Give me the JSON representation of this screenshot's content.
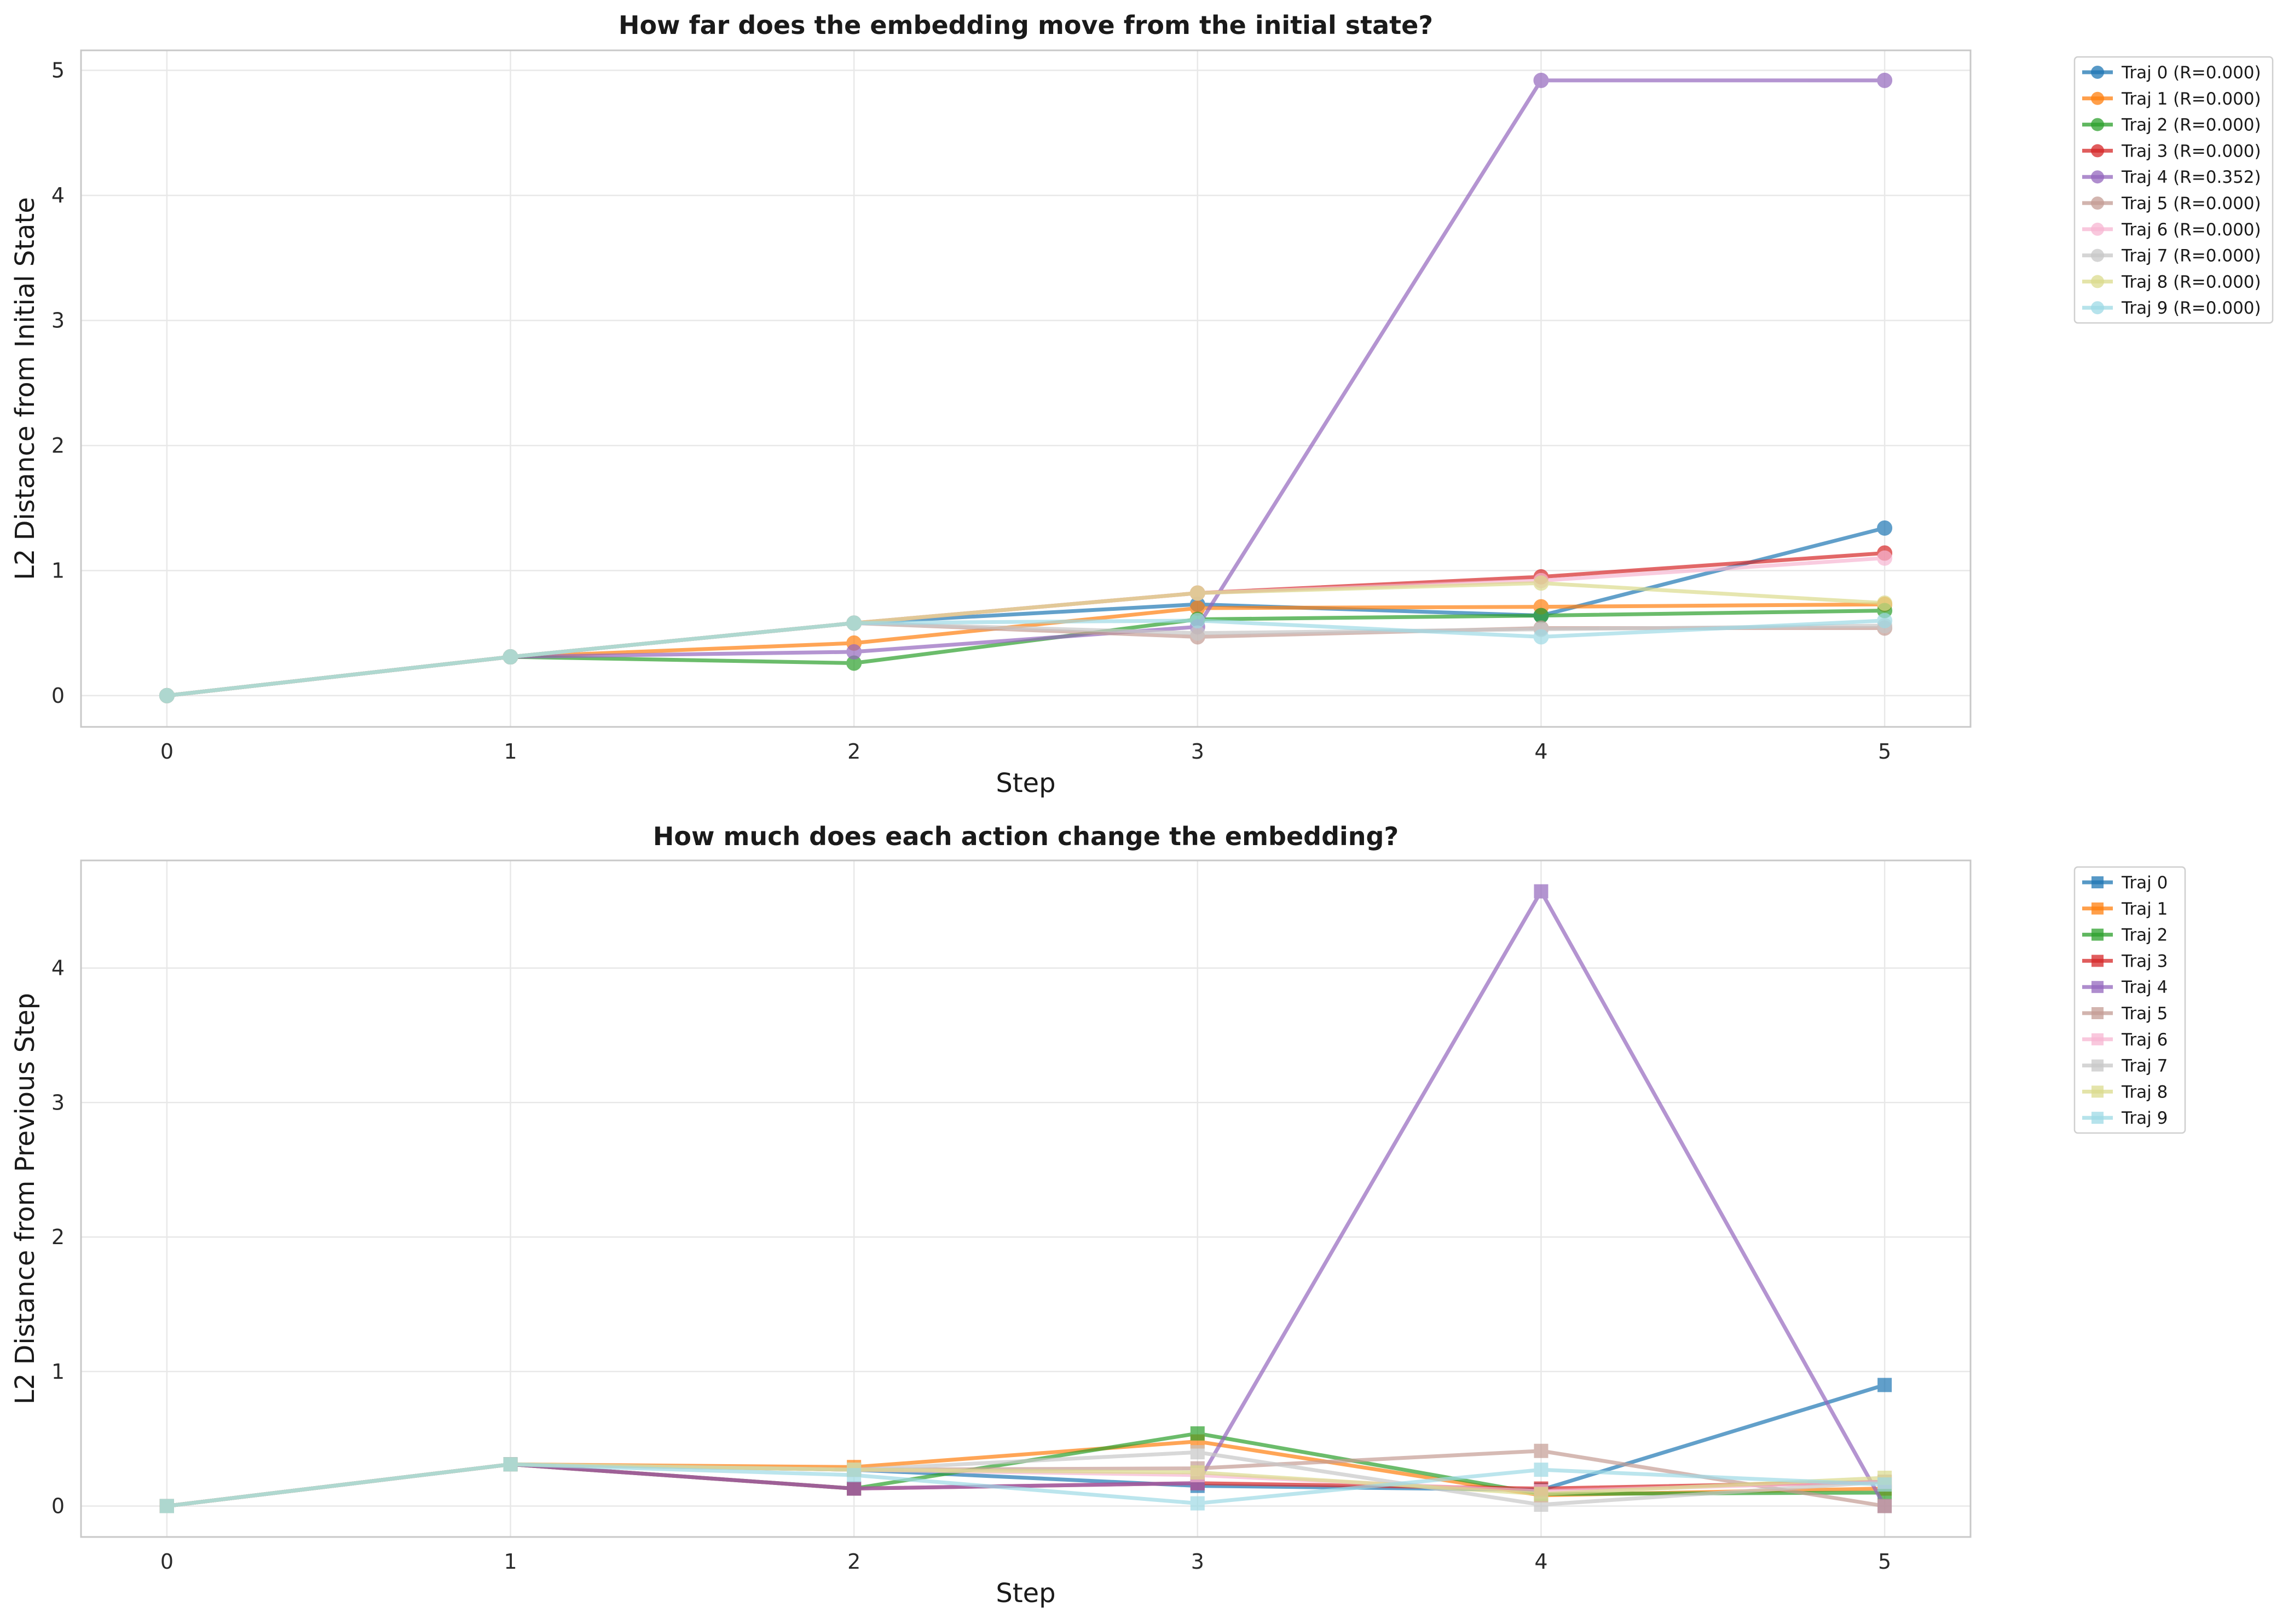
{
  "colors": [
    "#1f77b4",
    "#ff7f0e",
    "#2ca02c",
    "#d62728",
    "#9467bd",
    "#c49c94",
    "#f7b6d2",
    "#c7c7c7",
    "#dbdb8d",
    "#9edae5"
  ],
  "chart_data": [
    {
      "type": "line",
      "title": "How far does the embedding move from the initial state?",
      "xlabel": "Step",
      "ylabel": "L2 Distance from Initial State",
      "x": [
        0,
        1,
        2,
        3,
        4,
        5
      ],
      "xticks": [
        "0",
        "1",
        "2",
        "3",
        "4",
        "5"
      ],
      "yticks": [
        "0",
        "1",
        "2",
        "3",
        "4",
        "5"
      ],
      "xlim": [
        -0.25,
        5.25
      ],
      "ylim": [
        -0.25,
        5.16
      ],
      "grid": true,
      "marker": "circle",
      "legend_position": "outside-top-right",
      "series": [
        {
          "name": "Traj 0 (R=0.000)",
          "values": [
            0,
            0.31,
            0.58,
            0.73,
            0.64,
            1.34
          ]
        },
        {
          "name": "Traj 1 (R=0.000)",
          "values": [
            0,
            0.31,
            0.42,
            0.7,
            0.71,
            0.73
          ]
        },
        {
          "name": "Traj 2 (R=0.000)",
          "values": [
            0,
            0.31,
            0.26,
            0.61,
            0.64,
            0.68
          ]
        },
        {
          "name": "Traj 3 (R=0.000)",
          "values": [
            0,
            0.31,
            0.58,
            0.82,
            0.95,
            1.14
          ]
        },
        {
          "name": "Traj 4 (R=0.352)",
          "values": [
            0,
            0.31,
            0.35,
            0.55,
            4.92,
            4.92
          ]
        },
        {
          "name": "Traj 5 (R=0.000)",
          "values": [
            0,
            0.31,
            0.58,
            0.47,
            0.54,
            0.54
          ]
        },
        {
          "name": "Traj 6 (R=0.000)",
          "values": [
            0,
            0.31,
            0.58,
            0.82,
            0.92,
            1.1
          ]
        },
        {
          "name": "Traj 7 (R=0.000)",
          "values": [
            0,
            0.31,
            0.58,
            0.5,
            0.53,
            0.56
          ]
        },
        {
          "name": "Traj 8 (R=0.000)",
          "values": [
            0,
            0.31,
            0.58,
            0.82,
            0.9,
            0.74
          ]
        },
        {
          "name": "Traj 9 (R=0.000)",
          "values": [
            0,
            0.31,
            0.58,
            0.6,
            0.47,
            0.6
          ]
        }
      ]
    },
    {
      "type": "line",
      "title": "How much does each action change the embedding?",
      "xlabel": "Step",
      "ylabel": "L2 Distance from Previous Step",
      "x": [
        0,
        1,
        2,
        3,
        4,
        5
      ],
      "xticks": [
        "0",
        "1",
        "2",
        "3",
        "4",
        "5"
      ],
      "yticks": [
        "0",
        "1",
        "2",
        "3",
        "4"
      ],
      "xlim": [
        -0.25,
        5.25
      ],
      "ylim": [
        -0.23,
        4.8
      ],
      "grid": true,
      "marker": "square",
      "legend_position": "outside-top-right",
      "series": [
        {
          "name": "Traj 0",
          "values": [
            0,
            0.31,
            0.27,
            0.15,
            0.12,
            0.9
          ]
        },
        {
          "name": "Traj 1",
          "values": [
            0,
            0.31,
            0.29,
            0.48,
            0.08,
            0.13
          ]
        },
        {
          "name": "Traj 2",
          "values": [
            0,
            0.31,
            0.13,
            0.54,
            0.09,
            0.1
          ]
        },
        {
          "name": "Traj 3",
          "values": [
            0,
            0.31,
            0.13,
            0.17,
            0.13,
            0.18
          ]
        },
        {
          "name": "Traj 4",
          "values": [
            0,
            0.31,
            0.13,
            0.17,
            4.57,
            0.0
          ]
        },
        {
          "name": "Traj 5",
          "values": [
            0,
            0.31,
            0.27,
            0.28,
            0.41,
            0.0
          ]
        },
        {
          "name": "Traj 6",
          "values": [
            0,
            0.31,
            0.27,
            0.23,
            0.11,
            0.18
          ]
        },
        {
          "name": "Traj 7",
          "values": [
            0,
            0.31,
            0.27,
            0.4,
            0.01,
            0.18
          ]
        },
        {
          "name": "Traj 8",
          "values": [
            0,
            0.31,
            0.27,
            0.25,
            0.09,
            0.21
          ]
        },
        {
          "name": "Traj 9",
          "values": [
            0,
            0.31,
            0.23,
            0.02,
            0.27,
            0.16
          ]
        }
      ]
    }
  ]
}
